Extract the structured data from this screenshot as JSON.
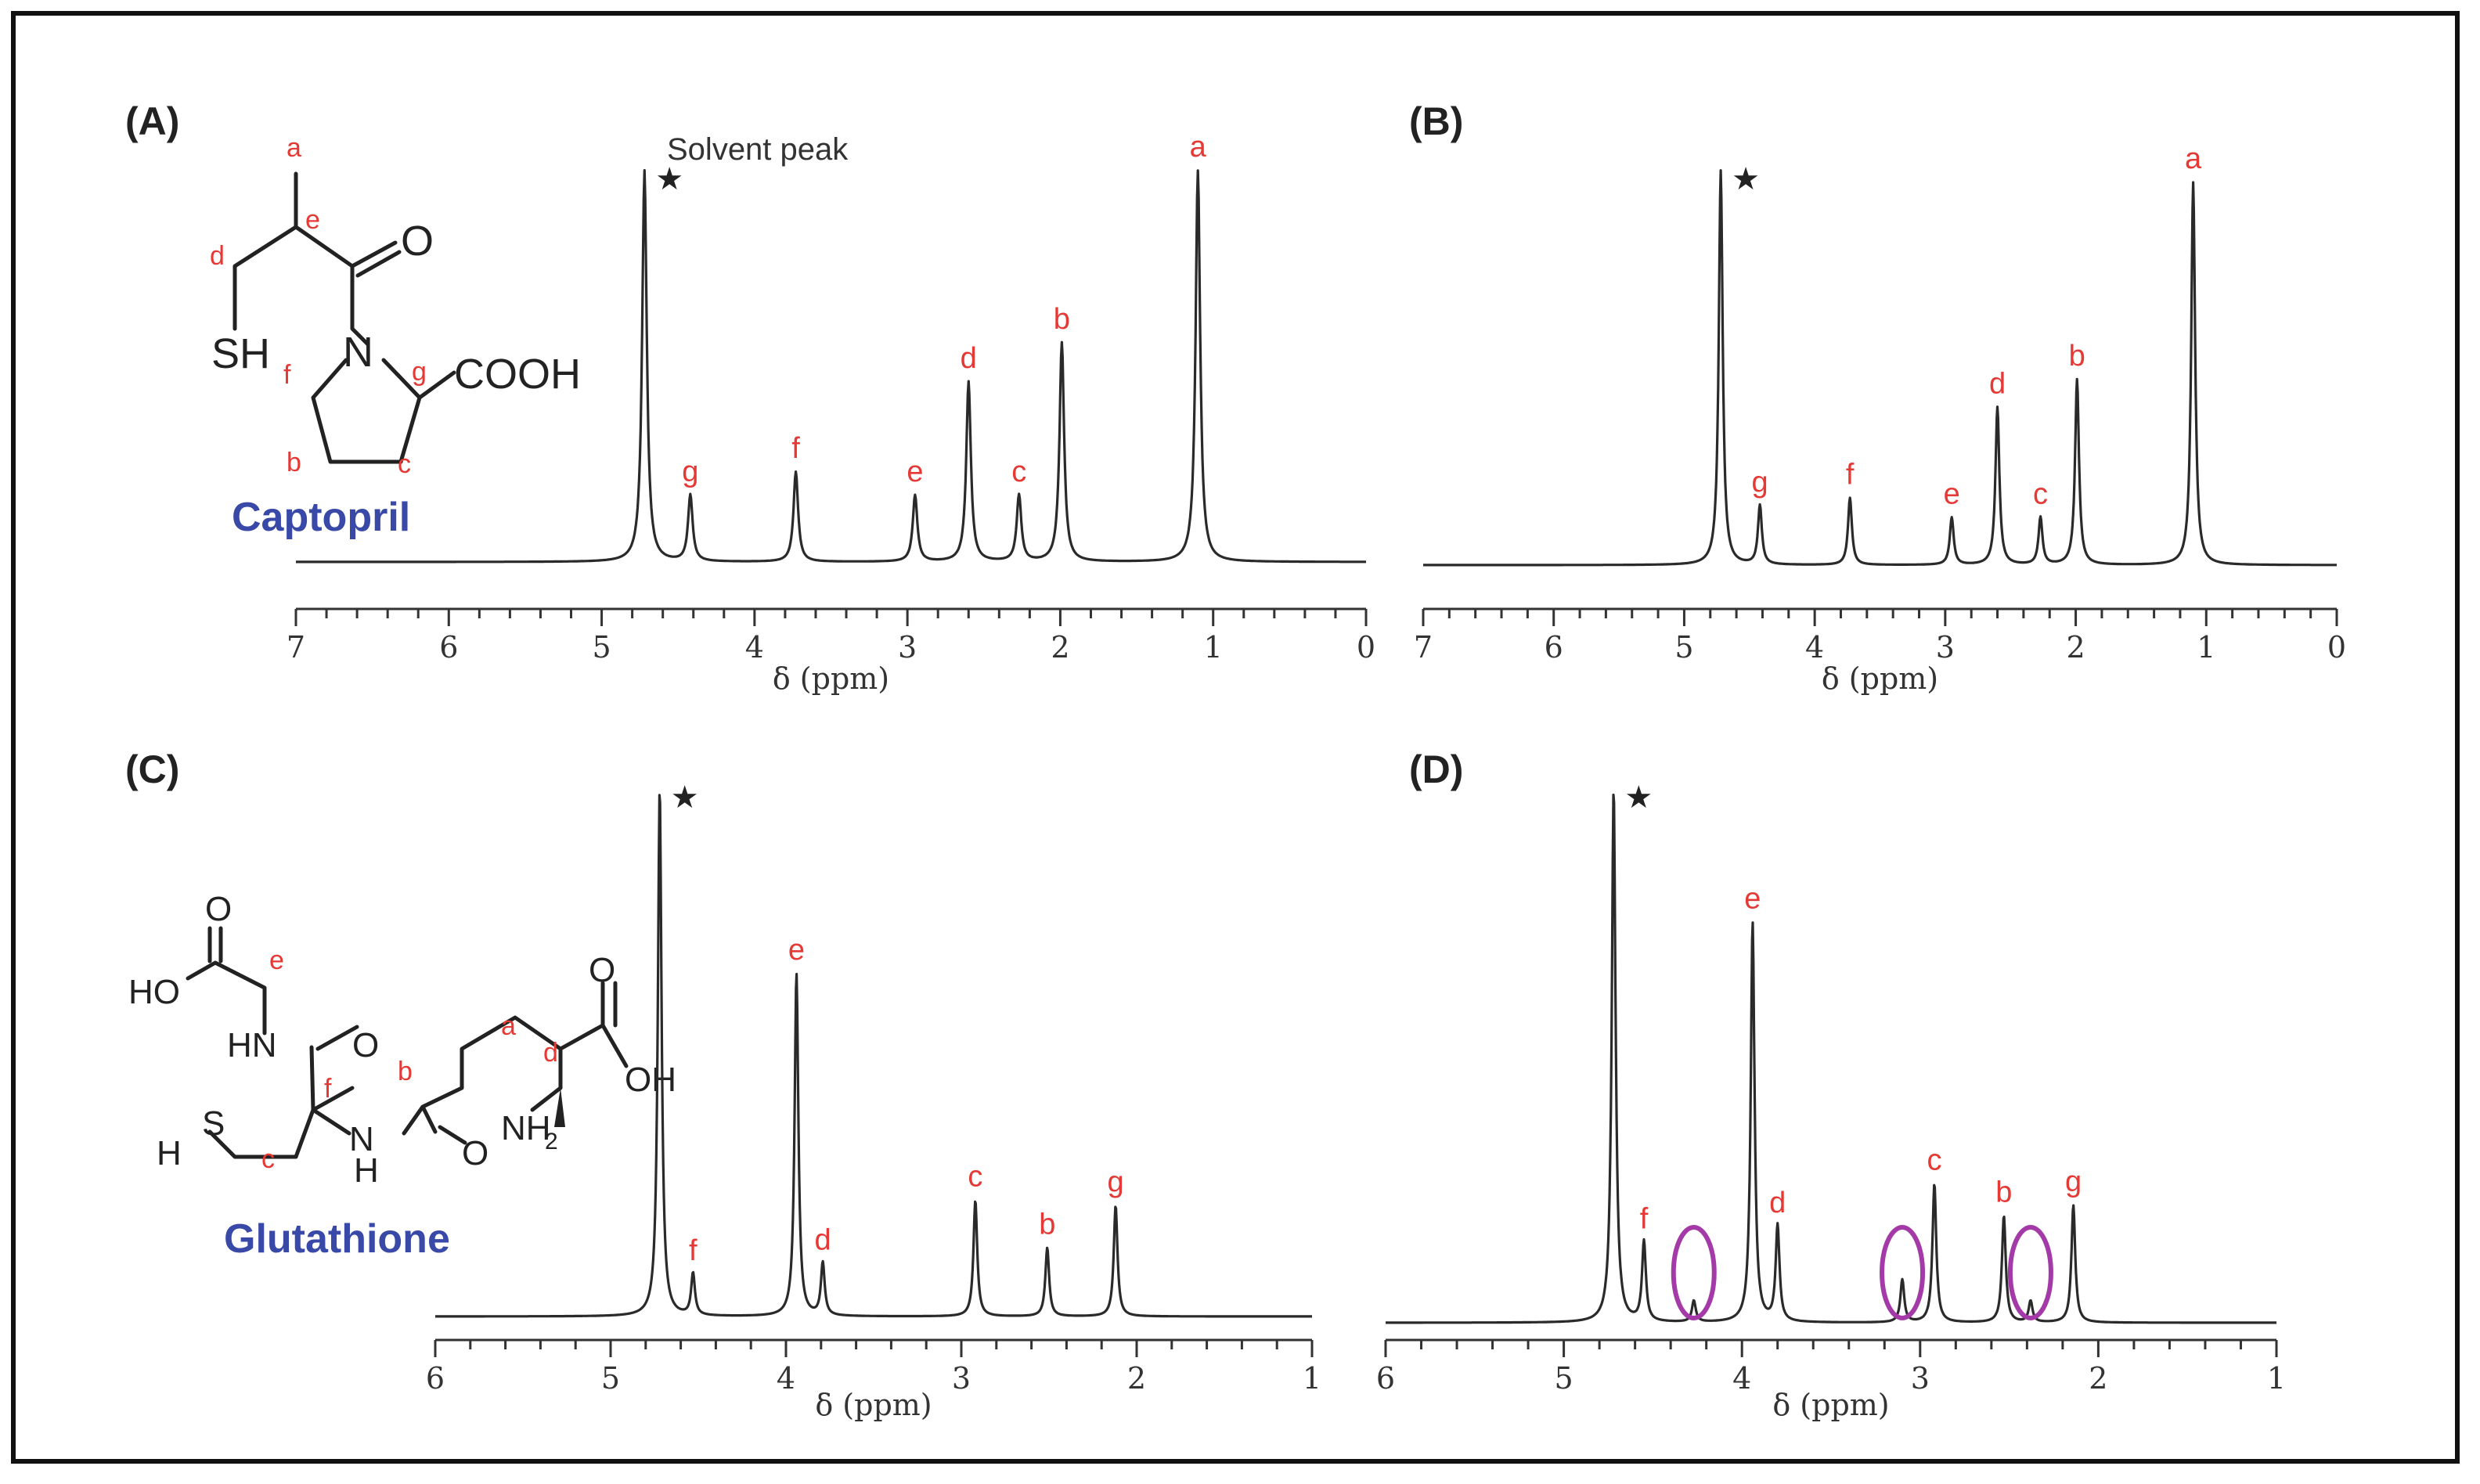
{
  "chart_data": [
    {
      "type": "line",
      "panel": "(A)",
      "compound": "Captopril",
      "xlabel": "δ (ppm)",
      "xlim": [
        7,
        0
      ],
      "xticks": [
        7,
        6,
        5,
        4,
        3,
        2,
        1,
        0
      ],
      "solvent_label": "Solvent peak",
      "peaks": [
        {
          "label": "*",
          "x": 4.72,
          "intensity": 1.0
        },
        {
          "label": "g",
          "x": 4.42,
          "intensity": 0.17
        },
        {
          "label": "f",
          "x": 3.73,
          "intensity": 0.23
        },
        {
          "label": "e",
          "x": 2.95,
          "intensity": 0.17
        },
        {
          "label": "d",
          "x": 2.6,
          "intensity": 0.46
        },
        {
          "label": "c",
          "x": 2.27,
          "intensity": 0.17
        },
        {
          "label": "b",
          "x": 1.99,
          "intensity": 0.56
        },
        {
          "label": "a",
          "x": 1.1,
          "intensity": 1.0
        }
      ]
    },
    {
      "type": "line",
      "panel": "(B)",
      "xlabel": "δ (ppm)",
      "xlim": [
        7,
        0
      ],
      "xticks": [
        7,
        6,
        5,
        4,
        3,
        2,
        1,
        0
      ],
      "peaks": [
        {
          "label": "*",
          "x": 4.72,
          "intensity": 1.0
        },
        {
          "label": "g",
          "x": 4.42,
          "intensity": 0.15
        },
        {
          "label": "f",
          "x": 3.73,
          "intensity": 0.17
        },
        {
          "label": "e",
          "x": 2.95,
          "intensity": 0.12
        },
        {
          "label": "d",
          "x": 2.6,
          "intensity": 0.4
        },
        {
          "label": "c",
          "x": 2.27,
          "intensity": 0.12
        },
        {
          "label": "b",
          "x": 1.99,
          "intensity": 0.47
        },
        {
          "label": "a",
          "x": 1.1,
          "intensity": 0.97
        }
      ]
    },
    {
      "type": "line",
      "panel": "(C)",
      "compound": "Glutathione",
      "xlabel": "δ (ppm)",
      "xlim": [
        6,
        1
      ],
      "xticks": [
        6,
        5,
        4,
        3,
        2,
        1
      ],
      "peaks": [
        {
          "label": "*",
          "x": 4.72,
          "intensity": 1.0
        },
        {
          "label": "f",
          "x": 4.53,
          "intensity": 0.08
        },
        {
          "label": "e",
          "x": 3.94,
          "intensity": 0.65
        },
        {
          "label": "d",
          "x": 3.79,
          "intensity": 0.1
        },
        {
          "label": "c",
          "x": 2.92,
          "intensity": 0.22
        },
        {
          "label": "b",
          "x": 2.51,
          "intensity": 0.13
        },
        {
          "label": "g",
          "x": 2.12,
          "intensity": 0.21
        }
      ]
    },
    {
      "type": "line",
      "panel": "(D)",
      "xlabel": "δ (ppm)",
      "xlim": [
        6,
        1
      ],
      "xticks": [
        6,
        5,
        4,
        3,
        2,
        1
      ],
      "peaks": [
        {
          "label": "*",
          "x": 4.72,
          "intensity": 1.0
        },
        {
          "label": "f",
          "x": 4.55,
          "intensity": 0.15
        },
        {
          "label": "",
          "x": 4.27,
          "intensity": 0.04
        },
        {
          "label": "e",
          "x": 3.94,
          "intensity": 0.75
        },
        {
          "label": "d",
          "x": 3.8,
          "intensity": 0.18
        },
        {
          "label": "",
          "x": 3.1,
          "intensity": 0.08
        },
        {
          "label": "c",
          "x": 2.92,
          "intensity": 0.26
        },
        {
          "label": "b",
          "x": 2.53,
          "intensity": 0.2
        },
        {
          "label": "",
          "x": 2.38,
          "intensity": 0.04
        },
        {
          "label": "g",
          "x": 2.14,
          "intensity": 0.22
        }
      ],
      "highlighted_ppm": [
        4.27,
        3.1,
        2.38
      ]
    }
  ],
  "structures": {
    "captopril": {
      "atoms": [
        "O",
        "SH",
        "N",
        "COOH"
      ],
      "position_labels": [
        "a",
        "e",
        "d",
        "f",
        "g",
        "b",
        "c"
      ]
    },
    "glutathione": {
      "atoms": [
        "O",
        "HO",
        "HN",
        "O",
        "O",
        "OH",
        "H",
        "S",
        "N",
        "H",
        "O",
        "NH",
        "2"
      ],
      "position_labels": [
        "e",
        "a",
        "d",
        "b",
        "f",
        "c"
      ]
    }
  },
  "colors": {
    "peak_label": "#e53935",
    "compound_name": "#3949a8",
    "highlight_ellipse": "#a43aa8",
    "spectrum": "#2a2a2a"
  }
}
